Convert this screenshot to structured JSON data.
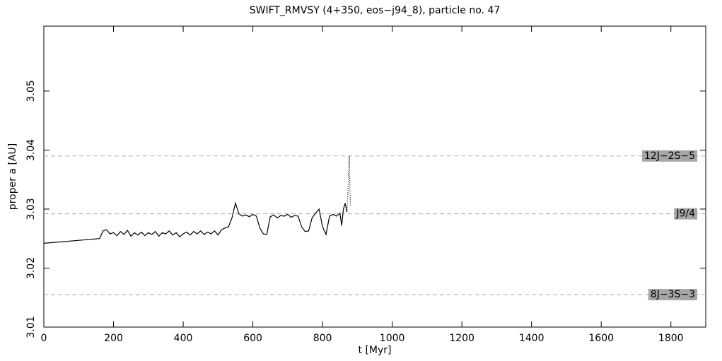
{
  "chart_data": {
    "type": "line",
    "title": "SWIFT_RMVSY (4+350, eos−j94_8), particle no. 47",
    "xlabel": "t [Myr]",
    "ylabel": "proper a [AU]",
    "xlim": [
      0,
      1900
    ],
    "xticks": [
      0,
      200,
      400,
      600,
      800,
      1000,
      1200,
      1400,
      1600,
      1800
    ],
    "ylim": [
      3.01,
      3.061
    ],
    "yticks": [
      3.01,
      3.02,
      3.03,
      3.04,
      3.05
    ],
    "series": [
      {
        "color": "#000000",
        "style": "solid",
        "x": [
          0,
          160,
          170,
          180,
          190,
          200,
          210,
          220,
          230,
          240,
          250,
          260,
          270,
          280,
          290,
          300,
          310,
          320,
          330,
          340,
          350,
          360,
          370,
          380,
          390,
          400,
          410,
          420,
          430,
          440,
          450,
          460,
          470,
          480,
          490,
          500,
          510,
          520,
          530,
          540,
          550,
          560,
          570,
          580,
          590,
          600,
          610,
          620,
          630,
          640,
          650,
          660,
          670,
          680,
          690,
          700,
          710,
          720,
          730,
          740,
          750,
          760,
          770,
          780,
          790,
          800,
          810,
          820,
          830,
          840,
          850,
          855,
          860,
          865,
          870
        ],
        "values": [
          3.0242,
          3.025,
          3.0263,
          3.0265,
          3.0258,
          3.026,
          3.0255,
          3.0262,
          3.0257,
          3.0264,
          3.0254,
          3.026,
          3.0256,
          3.0261,
          3.0255,
          3.026,
          3.0257,
          3.0262,
          3.0254,
          3.026,
          3.0258,
          3.0263,
          3.0256,
          3.026,
          3.0253,
          3.0258,
          3.0261,
          3.0256,
          3.0262,
          3.0258,
          3.0263,
          3.0257,
          3.0261,
          3.0258,
          3.0263,
          3.0256,
          3.0265,
          3.0268,
          3.027,
          3.0285,
          3.031,
          3.0292,
          3.0288,
          3.029,
          3.0287,
          3.0291,
          3.0288,
          3.0268,
          3.0258,
          3.0257,
          3.0287,
          3.029,
          3.0285,
          3.0289,
          3.0288,
          3.0291,
          3.0286,
          3.0289,
          3.0288,
          3.027,
          3.0262,
          3.0263,
          3.0285,
          3.0293,
          3.03,
          3.027,
          3.0257,
          3.0288,
          3.0291,
          3.0288,
          3.0293,
          3.0272,
          3.03,
          3.031,
          3.0295
        ]
      },
      {
        "color": "#000000",
        "style": "dotted",
        "x": [
          870,
          873,
          875,
          877,
          879,
          880
        ],
        "values": [
          3.0295,
          3.033,
          3.037,
          3.039,
          3.033,
          3.0305
        ]
      }
    ],
    "resonances": [
      {
        "name": "12J−2S−5",
        "value": 3.039
      },
      {
        "name": "J9/4",
        "value": 3.0292
      },
      {
        "name": "8J−3S−3",
        "value": 3.0155
      }
    ]
  }
}
